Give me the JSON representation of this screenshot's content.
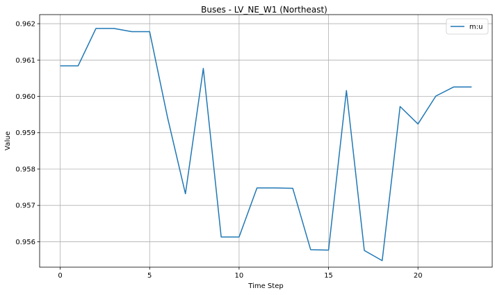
{
  "chart_data": {
    "type": "line",
    "title": "Buses - LV_NE_W1 (Northeast)",
    "xlabel": "Time Step",
    "ylabel": "Value",
    "xlim": [
      -1.15,
      24.15
    ],
    "ylim": [
      0.9553,
      0.96225
    ],
    "x_ticks": [
      0,
      5,
      10,
      15,
      20
    ],
    "y_ticks": [
      0.956,
      0.957,
      0.958,
      0.959,
      0.96,
      0.961,
      0.962
    ],
    "grid": true,
    "legend_position": "top-right",
    "series": [
      {
        "name": "m:u",
        "color": "#1f77b4",
        "x": [
          0,
          1,
          2,
          3,
          4,
          5,
          6,
          7,
          8,
          9,
          10,
          11,
          12,
          13,
          14,
          15,
          16,
          17,
          18,
          19,
          20,
          21,
          22,
          23
        ],
        "values": [
          0.96084,
          0.96084,
          0.96187,
          0.96187,
          0.96178,
          0.96178,
          0.95942,
          0.95732,
          0.96077,
          0.95613,
          0.95613,
          0.95748,
          0.95748,
          0.95747,
          0.95578,
          0.95577,
          0.96016,
          0.95576,
          0.95548,
          0.95972,
          0.95924,
          0.96001,
          0.96026,
          0.96026
        ]
      }
    ]
  }
}
